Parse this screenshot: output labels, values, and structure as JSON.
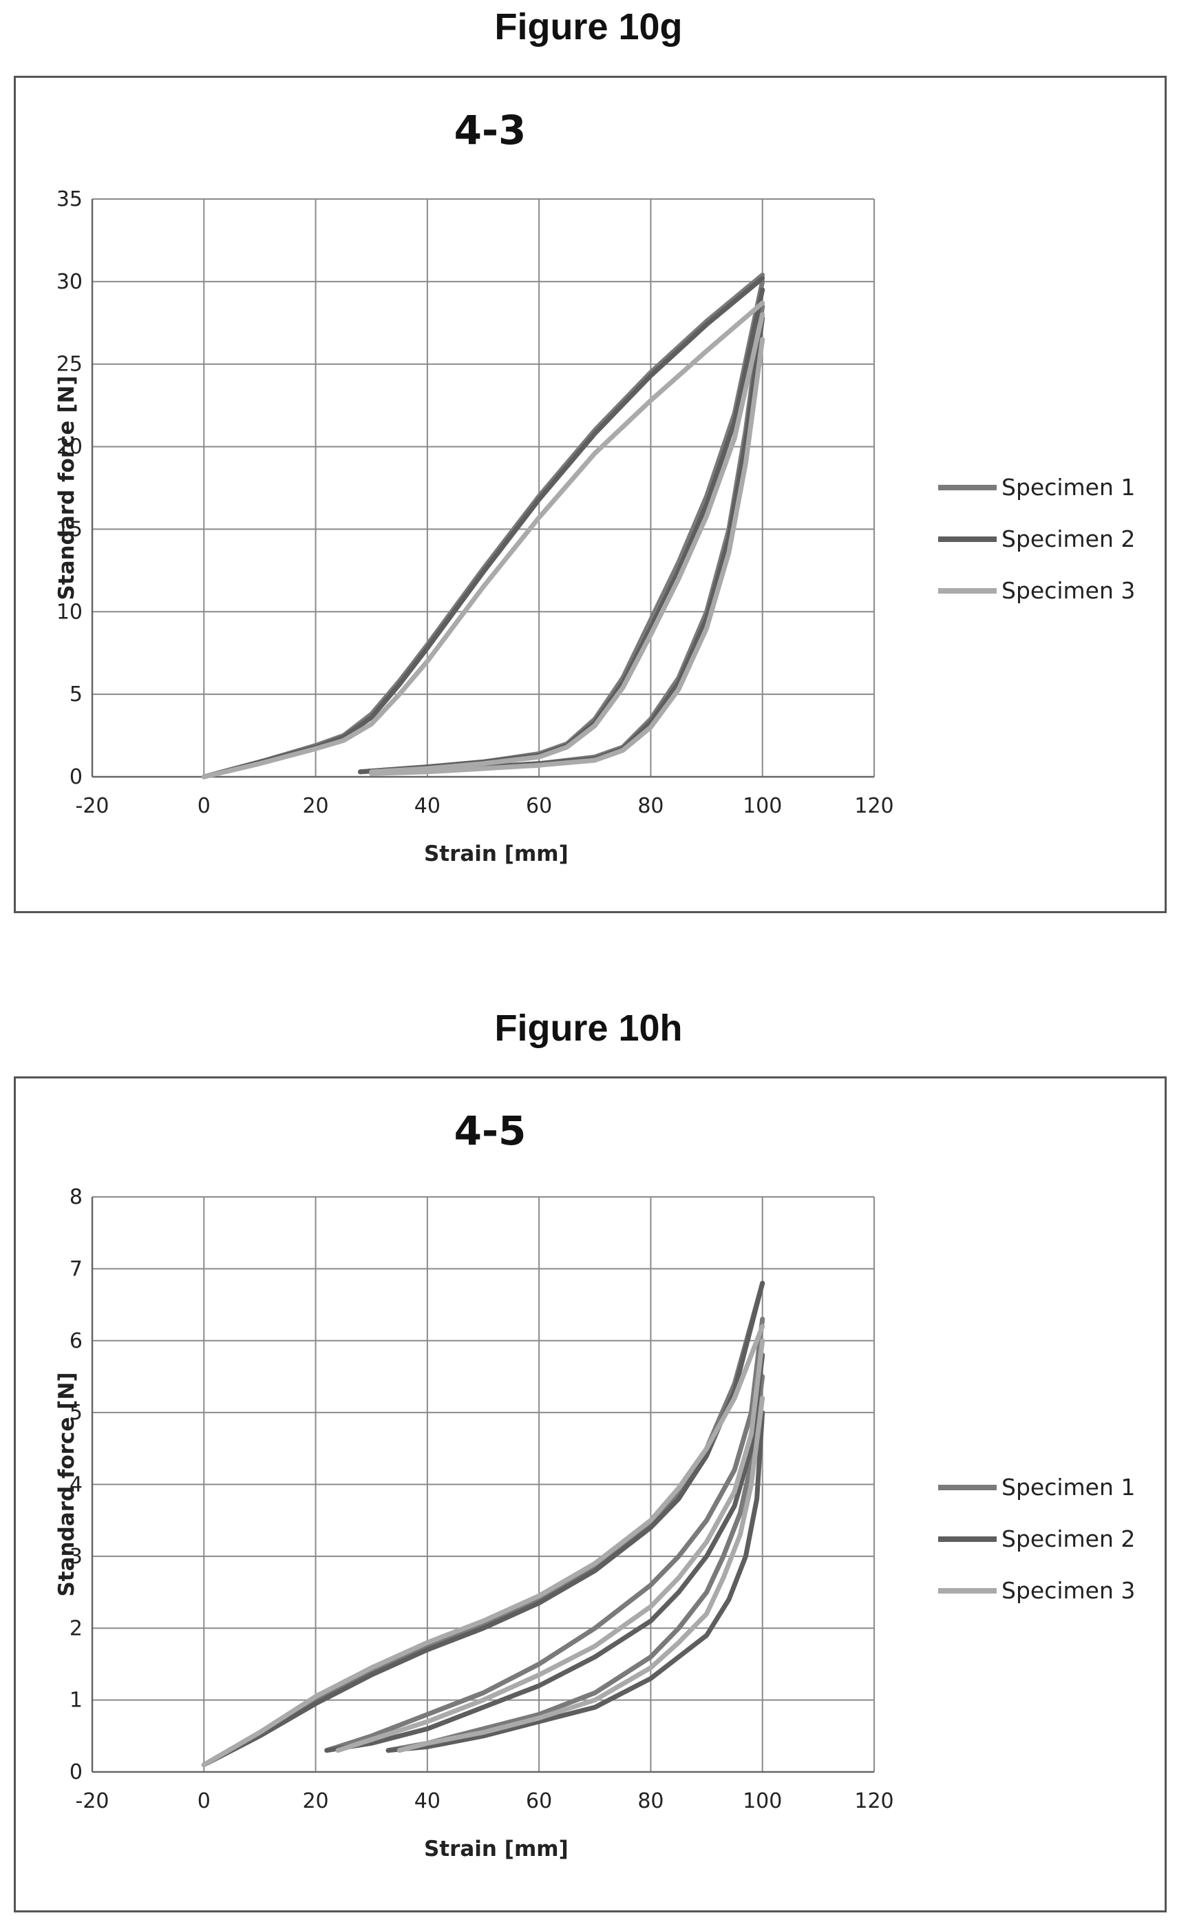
{
  "chart_data": [
    {
      "type": "line",
      "figure_label": "Figure 10g",
      "title": "4-3",
      "xlabel": "Strain [mm]",
      "ylabel": "Standard force [N]",
      "xlim": [
        -20,
        120
      ],
      "ylim": [
        0,
        35
      ],
      "xticks": [
        -20,
        0,
        20,
        40,
        60,
        80,
        100,
        120
      ],
      "yticks": [
        0,
        5,
        10,
        15,
        20,
        25,
        30,
        35
      ],
      "grid": true,
      "legend": "right",
      "series": [
        {
          "name": "Specimen 1",
          "color": "#7a7a7a",
          "curves": [
            {
              "x": [
                0,
                10,
                20,
                25,
                30,
                35,
                40,
                50,
                60,
                70,
                80,
                90,
                100
              ],
              "y": [
                0,
                0.9,
                1.9,
                2.5,
                3.8,
                5.8,
                8.0,
                12.6,
                17.0,
                21.0,
                24.5,
                27.6,
                30.4
              ]
            },
            {
              "x": [
                100,
                95,
                90,
                85,
                80,
                75,
                70,
                65,
                60,
                50,
                40,
                28
              ],
              "y": [
                30.0,
                22.0,
                17.0,
                13.0,
                9.5,
                6.0,
                3.5,
                2.0,
                1.4,
                0.9,
                0.6,
                0.3
              ]
            },
            {
              "x": [
                100,
                97,
                94,
                90,
                85,
                80,
                75,
                70,
                60,
                50,
                40,
                30
              ],
              "y": [
                28.5,
                21.0,
                15.0,
                10.0,
                6.0,
                3.5,
                1.8,
                1.2,
                0.8,
                0.6,
                0.4,
                0.2
              ]
            }
          ]
        },
        {
          "name": "Specimen 2",
          "color": "#5e5e5e",
          "curves": [
            {
              "x": [
                0,
                10,
                20,
                25,
                30,
                35,
                40,
                50,
                60,
                70,
                80,
                90,
                100
              ],
              "y": [
                0,
                0.9,
                1.8,
                2.4,
                3.6,
                5.6,
                7.8,
                12.4,
                16.8,
                20.8,
                24.3,
                27.4,
                30.2
              ]
            },
            {
              "x": [
                100,
                95,
                90,
                85,
                80,
                75,
                70,
                65,
                60,
                50,
                40,
                28
              ],
              "y": [
                29.5,
                21.5,
                16.5,
                12.5,
                9.0,
                5.7,
                3.3,
                1.9,
                1.3,
                0.9,
                0.6,
                0.3
              ]
            },
            {
              "x": [
                100,
                97,
                94,
                90,
                85,
                80,
                75,
                70,
                60,
                50,
                40,
                30
              ],
              "y": [
                27.8,
                20.3,
                14.5,
                9.6,
                5.7,
                3.3,
                1.7,
                1.1,
                0.8,
                0.6,
                0.4,
                0.2
              ]
            }
          ]
        },
        {
          "name": "Specimen 3",
          "color": "#aaaaaa",
          "curves": [
            {
              "x": [
                0,
                10,
                20,
                25,
                30,
                35,
                40,
                50,
                60,
                70,
                80,
                90,
                100
              ],
              "y": [
                0,
                0.8,
                1.7,
                2.2,
                3.2,
                5.0,
                7.0,
                11.5,
                15.7,
                19.6,
                22.8,
                25.8,
                28.7
              ]
            },
            {
              "x": [
                100,
                95,
                90,
                85,
                80,
                75,
                70,
                65,
                60,
                50,
                40,
                30
              ],
              "y": [
                28.0,
                20.5,
                15.8,
                12.0,
                8.6,
                5.4,
                3.1,
                1.8,
                1.2,
                0.8,
                0.5,
                0.3
              ]
            },
            {
              "x": [
                100,
                97,
                94,
                90,
                85,
                80,
                75,
                70,
                60,
                50,
                40,
                30
              ],
              "y": [
                26.5,
                19.0,
                13.6,
                9.0,
                5.3,
                3.0,
                1.6,
                1.0,
                0.7,
                0.5,
                0.3,
                0.2
              ]
            }
          ]
        }
      ]
    },
    {
      "type": "line",
      "figure_label": "Figure 10h",
      "title": "4-5",
      "xlabel": "Strain [mm]",
      "ylabel": "Standard force [N]",
      "xlim": [
        -20,
        120
      ],
      "ylim": [
        0,
        8
      ],
      "xticks": [
        -20,
        0,
        20,
        40,
        60,
        80,
        100,
        120
      ],
      "yticks": [
        0,
        1,
        2,
        3,
        4,
        5,
        6,
        7,
        8
      ],
      "grid": true,
      "legend": "right",
      "series": [
        {
          "name": "Specimen 1",
          "color": "#7a7a7a",
          "curves": [
            {
              "x": [
                0,
                10,
                20,
                30,
                40,
                50,
                60,
                70,
                80,
                85,
                90,
                95,
                100
              ],
              "y": [
                0.1,
                0.55,
                1.0,
                1.4,
                1.75,
                2.05,
                2.4,
                2.85,
                3.45,
                3.9,
                4.5,
                5.4,
                6.8
              ]
            },
            {
              "x": [
                100,
                98,
                95,
                90,
                85,
                80,
                70,
                60,
                50,
                40,
                30,
                22
              ],
              "y": [
                6.3,
                5.0,
                4.2,
                3.5,
                3.0,
                2.6,
                2.0,
                1.5,
                1.1,
                0.8,
                0.5,
                0.3
              ]
            },
            {
              "x": [
                100,
                98,
                96,
                93,
                90,
                85,
                80,
                70,
                60,
                50,
                40,
                33
              ],
              "y": [
                5.5,
                4.3,
                3.6,
                3.0,
                2.5,
                2.0,
                1.6,
                1.1,
                0.8,
                0.6,
                0.4,
                0.3
              ]
            }
          ]
        },
        {
          "name": "Specimen 2",
          "color": "#5e5e5e",
          "curves": [
            {
              "x": [
                0,
                10,
                20,
                30,
                40,
                50,
                60,
                70,
                80,
                85,
                90,
                95,
                100
              ],
              "y": [
                0.1,
                0.5,
                0.95,
                1.35,
                1.7,
                2.0,
                2.35,
                2.8,
                3.4,
                3.8,
                4.4,
                5.3,
                6.8
              ]
            },
            {
              "x": [
                100,
                98,
                95,
                90,
                85,
                80,
                70,
                60,
                50,
                40,
                30,
                22
              ],
              "y": [
                5.8,
                4.5,
                3.7,
                3.0,
                2.5,
                2.1,
                1.6,
                1.2,
                0.9,
                0.6,
                0.4,
                0.3
              ]
            },
            {
              "x": [
                100,
                99,
                97,
                94,
                90,
                85,
                80,
                70,
                60,
                50,
                40,
                33
              ],
              "y": [
                5.0,
                3.8,
                3.0,
                2.4,
                1.9,
                1.6,
                1.3,
                0.9,
                0.7,
                0.5,
                0.35,
                0.3
              ]
            }
          ]
        },
        {
          "name": "Specimen 3",
          "color": "#aaaaaa",
          "curves": [
            {
              "x": [
                0,
                10,
                20,
                30,
                40,
                50,
                60,
                70,
                80,
                85,
                90,
                95,
                100
              ],
              "y": [
                0.1,
                0.55,
                1.05,
                1.45,
                1.8,
                2.1,
                2.45,
                2.9,
                3.5,
                3.95,
                4.5,
                5.2,
                6.2
              ]
            },
            {
              "x": [
                100,
                98,
                95,
                90,
                85,
                80,
                70,
                60,
                50,
                40,
                30,
                24
              ],
              "y": [
                6.0,
                4.7,
                3.9,
                3.2,
                2.7,
                2.3,
                1.75,
                1.35,
                1.0,
                0.7,
                0.45,
                0.3
              ]
            },
            {
              "x": [
                100,
                98,
                96,
                93,
                90,
                85,
                80,
                70,
                60,
                50,
                40,
                35
              ],
              "y": [
                5.2,
                4.0,
                3.3,
                2.7,
                2.2,
                1.8,
                1.45,
                1.0,
                0.75,
                0.55,
                0.4,
                0.3
              ]
            }
          ]
        }
      ]
    }
  ]
}
